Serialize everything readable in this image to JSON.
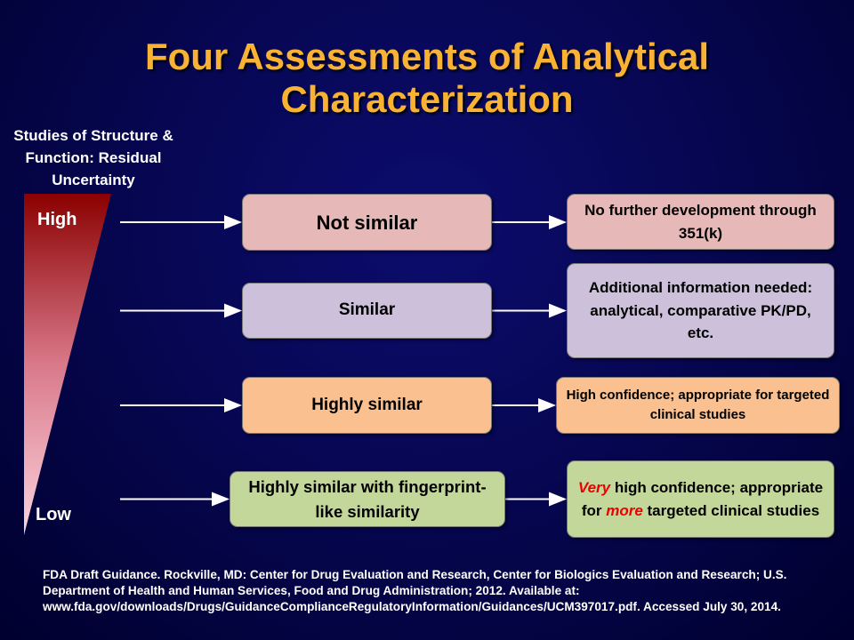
{
  "header": {
    "title": "Four Assessments of Analytical Characterization"
  },
  "scale": {
    "label": "Studies of Structure & Function: Residual Uncertainty",
    "high": "High",
    "low": "Low"
  },
  "rows": [
    {
      "assessment": "Not similar",
      "outcome": [
        {
          "text": "No further development through 351(k)",
          "emphasis": false
        }
      ]
    },
    {
      "assessment": "Similar",
      "outcome": [
        {
          "text": "Additional information needed: analytical, comparative PK/PD, etc.",
          "emphasis": false
        }
      ]
    },
    {
      "assessment": "Highly similar",
      "outcome": [
        {
          "text": "High confidence; appropriate for targeted clinical studies",
          "emphasis": false
        }
      ]
    },
    {
      "assessment": "Highly similar with fingerprint-like similarity",
      "outcome": [
        {
          "text": "Very",
          "emphasis": true
        },
        {
          "text": " high confidence; appropriate for ",
          "emphasis": false
        },
        {
          "text": "more",
          "emphasis": true
        },
        {
          "text": " targeted clinical studies",
          "emphasis": false
        }
      ]
    }
  ],
  "footnote": "FDA Draft Guidance.  Rockville, MD: Center for Drug Evaluation and Research, Center for Biologics Evaluation and Research; U.S. Department of Health and Human Services, Food and Drug Administration; 2012.  Available at: www.fda.gov/downloads/Drugs/GuidanceComplianceRegulatoryInformation/Guidances/UCM397017.pdf. Accessed July 30, 2014."
}
